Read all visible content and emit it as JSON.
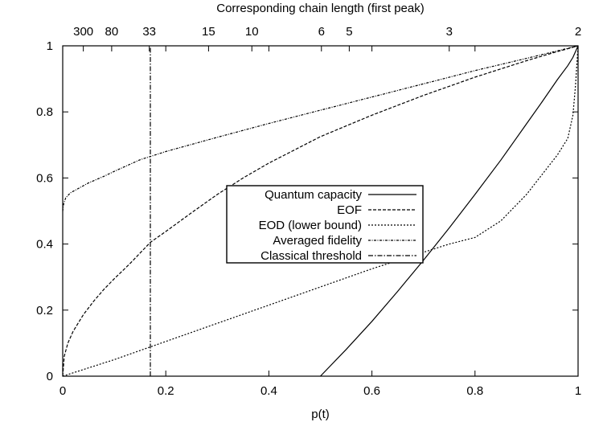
{
  "chart_data": {
    "type": "line",
    "title": "Corresponding chain length (first peak)",
    "xlabel": "p(t)",
    "ylabel": "",
    "xlim": [
      0,
      1
    ],
    "ylim": [
      0,
      1
    ],
    "x_ticks": [
      "0",
      "0.2",
      "0.4",
      "0.6",
      "0.8",
      "1"
    ],
    "y_ticks": [
      "0",
      "0.2",
      "0.4",
      "0.6",
      "0.8",
      "1"
    ],
    "top_ticks": [
      {
        "p": 0.04,
        "label": "300"
      },
      {
        "p": 0.095,
        "label": "80"
      },
      {
        "p": 0.168,
        "label": "33"
      },
      {
        "p": 0.283,
        "label": "15"
      },
      {
        "p": 0.367,
        "label": "10"
      },
      {
        "p": 0.502,
        "label": "6"
      },
      {
        "p": 0.556,
        "label": "5"
      },
      {
        "p": 0.75,
        "label": "3"
      },
      {
        "p": 1.0,
        "label": "2"
      }
    ],
    "grid": false,
    "legend_position": "center",
    "series": [
      {
        "name": "Quantum capacity",
        "style": "solid",
        "x": [
          0.5,
          0.55,
          0.6,
          0.65,
          0.7,
          0.75,
          0.8,
          0.85,
          0.9,
          0.93,
          0.96,
          0.98,
          0.99,
          1.0
        ],
        "y": [
          0.0,
          0.081,
          0.166,
          0.257,
          0.351,
          0.449,
          0.55,
          0.654,
          0.764,
          0.83,
          0.898,
          0.94,
          0.965,
          1.0
        ]
      },
      {
        "name": "EOF",
        "style": "dashed",
        "x": [
          0.0,
          0.003,
          0.01,
          0.02,
          0.04,
          0.06,
          0.08,
          0.1,
          0.13,
          0.17,
          0.2,
          0.25,
          0.3,
          0.35,
          0.4,
          0.5,
          0.6,
          0.7,
          0.8,
          0.9,
          0.95,
          1.0
        ],
        "y": [
          0.0,
          0.06,
          0.1,
          0.135,
          0.186,
          0.227,
          0.263,
          0.295,
          0.34,
          0.405,
          0.438,
          0.495,
          0.55,
          0.6,
          0.645,
          0.725,
          0.79,
          0.85,
          0.905,
          0.955,
          0.978,
          1.0
        ]
      },
      {
        "name": "EOD (lower bound)",
        "style": "dotted",
        "x": [
          0.0,
          0.1,
          0.2,
          0.3,
          0.4,
          0.5,
          0.6,
          0.7,
          0.75,
          0.8,
          0.85,
          0.9,
          0.93,
          0.96,
          0.98,
          0.99,
          0.995,
          1.0
        ],
        "y": [
          0.0,
          0.05,
          0.105,
          0.16,
          0.215,
          0.27,
          0.325,
          0.375,
          0.4,
          0.42,
          0.47,
          0.55,
          0.61,
          0.67,
          0.72,
          0.79,
          0.88,
          1.0
        ]
      },
      {
        "name": "Averaged fidelity",
        "style": "dash-dot",
        "x": [
          0.0,
          0.002,
          0.006,
          0.015,
          0.03,
          0.05,
          0.08,
          0.1,
          0.15,
          0.2,
          0.3,
          0.4,
          0.5,
          0.6,
          0.7,
          0.8,
          0.9,
          1.0
        ],
        "y": [
          0.5,
          0.523,
          0.54,
          0.555,
          0.568,
          0.585,
          0.605,
          0.62,
          0.655,
          0.68,
          0.723,
          0.765,
          0.805,
          0.845,
          0.885,
          0.925,
          0.962,
          1.0
        ]
      },
      {
        "name": "Classical threshold",
        "style": "dash-dot-long",
        "x": [
          0.17,
          0.17
        ],
        "y": [
          0.0,
          1.0
        ]
      }
    ]
  }
}
